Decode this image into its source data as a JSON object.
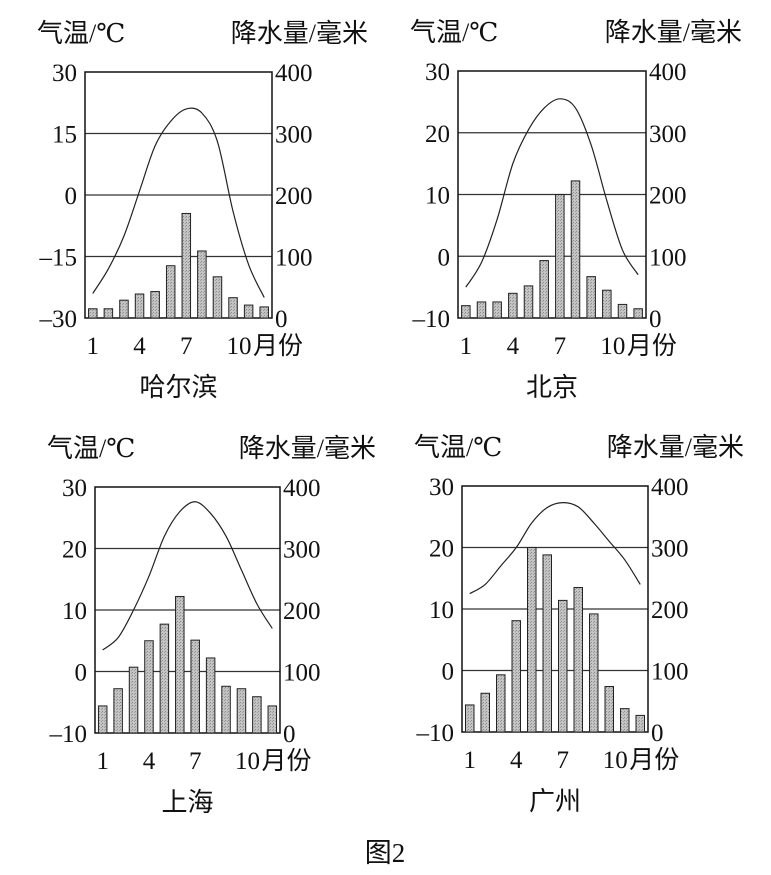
{
  "figure_caption": "图2",
  "colors": {
    "bar_fill": "#b8b8b8",
    "line": "#222222",
    "grid": "#333333"
  },
  "chart_data": [
    {
      "type": "bar+line",
      "title": "哈尔滨",
      "left_axis_label": "气温/℃",
      "right_axis_label": "降水量/毫米",
      "xlabel_suffix": "月份",
      "x_tick_labels": [
        "1",
        "4",
        "7",
        "10"
      ],
      "months": [
        1,
        2,
        3,
        4,
        5,
        6,
        7,
        8,
        9,
        10,
        11,
        12
      ],
      "temp_ylim": [
        -30,
        30
      ],
      "temp_ticks": [
        30,
        15,
        0,
        -15,
        -30
      ],
      "precip_ylim": [
        0,
        400
      ],
      "precip_ticks": [
        400,
        300,
        200,
        100,
        0
      ],
      "temperature": [
        -24,
        -18,
        -10,
        1,
        12,
        18,
        21,
        20,
        13,
        -4,
        -17,
        -25
      ],
      "precipitation": [
        15,
        15,
        29,
        39,
        43,
        85,
        170,
        109,
        67,
        33,
        21,
        18
      ],
      "grid": true
    },
    {
      "type": "bar+line",
      "title": "北京",
      "left_axis_label": "气温/℃",
      "right_axis_label": "降水量/毫米",
      "xlabel_suffix": "月份",
      "x_tick_labels": [
        "1",
        "4",
        "7",
        "10"
      ],
      "months": [
        1,
        2,
        3,
        4,
        5,
        6,
        7,
        8,
        9,
        10,
        11,
        12
      ],
      "temp_ylim": [
        -10,
        30
      ],
      "temp_ticks": [
        30,
        20,
        10,
        0,
        -10
      ],
      "precip_ylim": [
        0,
        400
      ],
      "precip_ticks": [
        400,
        300,
        200,
        100,
        0
      ],
      "temperature": [
        -5,
        -1,
        6,
        15,
        20.5,
        24,
        25.5,
        24,
        18,
        9,
        1,
        -3
      ],
      "precipitation": [
        20,
        26,
        26,
        40,
        52,
        93,
        200,
        222,
        67,
        45,
        22,
        15
      ],
      "grid": true
    },
    {
      "type": "bar+line",
      "title": "上海",
      "left_axis_label": "气温/℃",
      "right_axis_label": "降水量/毫米",
      "xlabel_suffix": "月份",
      "x_tick_labels": [
        "1",
        "4",
        "7",
        "10"
      ],
      "months": [
        1,
        2,
        3,
        4,
        5,
        6,
        7,
        8,
        9,
        10,
        11,
        12
      ],
      "temp_ylim": [
        -10,
        30
      ],
      "temp_ticks": [
        30,
        20,
        10,
        0,
        -10
      ],
      "precip_ylim": [
        0,
        400
      ],
      "precip_ticks": [
        400,
        300,
        200,
        100,
        0
      ],
      "temperature": [
        3.5,
        5.5,
        10,
        15.5,
        22,
        26,
        27.6,
        25.7,
        22,
        16.5,
        11,
        7
      ],
      "precipitation": [
        44,
        72,
        107,
        150,
        177,
        222,
        151,
        122,
        76,
        72,
        59,
        44
      ],
      "grid": true
    },
    {
      "type": "bar+line",
      "title": "广州",
      "left_axis_label": "气温/℃",
      "right_axis_label": "降水量/毫米",
      "xlabel_suffix": "月份",
      "x_tick_labels": [
        "1",
        "4",
        "7",
        "10"
      ],
      "months": [
        1,
        2,
        3,
        4,
        5,
        6,
        7,
        8,
        9,
        10,
        11,
        12
      ],
      "temp_ylim": [
        -10,
        30
      ],
      "temp_ticks": [
        30,
        20,
        10,
        0,
        -10
      ],
      "precip_ylim": [
        0,
        400
      ],
      "precip_ticks": [
        400,
        300,
        200,
        100,
        0
      ],
      "temperature": [
        12.5,
        14,
        17,
        20,
        24,
        26.5,
        27.3,
        26.6,
        24,
        21,
        18,
        14
      ],
      "precipitation": [
        44,
        63,
        93,
        181,
        300,
        288,
        214,
        235,
        192,
        74,
        38,
        27
      ],
      "grid": true
    }
  ]
}
